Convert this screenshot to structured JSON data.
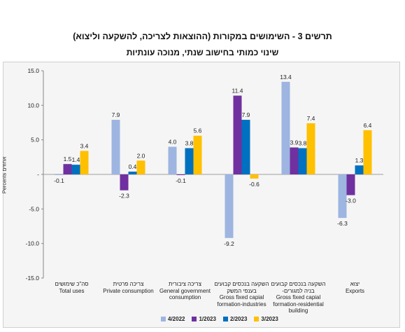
{
  "title_line1": "תרשים 3 - השימושים במקורות (ההוצאות לצריכה, להשקעה וליצוא)",
  "title_line2": "שינוי כמותי בחישוב שנתי, מנוכה עונתיות",
  "chart_data": {
    "type": "bar",
    "ylabel": "Percents אחוזים",
    "ylim": [
      -15,
      15
    ],
    "yticks": [
      -15.0,
      -10.0,
      -5.0,
      0,
      5.0,
      10.0,
      15.0
    ],
    "ytick_labels": [
      "-15.0",
      "-10.0",
      "-5.0",
      "-",
      "5.0",
      "10.0",
      "15.0"
    ],
    "categories": [
      [
        "סה\"כ שימושים",
        "Total uses"
      ],
      [
        "צריכה פרטית",
        "Private consumption"
      ],
      [
        "צריכה ציבורית",
        "General government",
        "consumption"
      ],
      [
        "השקעה בנכסים קבועים",
        "בענפי המשק",
        "Gross fixed capial",
        "formation-industries"
      ],
      [
        "השקעה בנכסים קבועים",
        "-בניה למגורים",
        "Gross fixed capial",
        "formation-residential",
        "building"
      ],
      [
        "יצוא",
        "Exports"
      ]
    ],
    "series": [
      {
        "name": "4/2022",
        "color": "#9db5e0",
        "values": [
          -0.1,
          7.9,
          4.0,
          -9.2,
          13.4,
          -6.3
        ],
        "labels": [
          "-0.1",
          "7.9",
          "4.0",
          "-9.2",
          "13.4",
          "-6.3"
        ]
      },
      {
        "name": "1/2023",
        "color": "#7030a0",
        "values": [
          1.5,
          -2.3,
          -0.1,
          11.4,
          3.9,
          -3.0
        ],
        "labels": [
          "1.5",
          "-2.3",
          "-0.1",
          "11.4",
          "3.9",
          "-3.0"
        ]
      },
      {
        "name": "2/2023",
        "color": "#0070c0",
        "values": [
          1.4,
          0.4,
          3.8,
          7.9,
          3.8,
          1.3
        ],
        "labels": [
          "1.4",
          "0.4",
          "3.8",
          "7.9",
          "3.8",
          "1.3"
        ]
      },
      {
        "name": "3/2023",
        "color": "#ffc000",
        "values": [
          3.4,
          2.0,
          5.6,
          -0.6,
          7.4,
          6.4
        ],
        "labels": [
          "3.4",
          "2.0",
          "5.6",
          "-0.6",
          "7.4",
          "6.4"
        ]
      }
    ],
    "grid": false,
    "legend_position": "bottom"
  }
}
